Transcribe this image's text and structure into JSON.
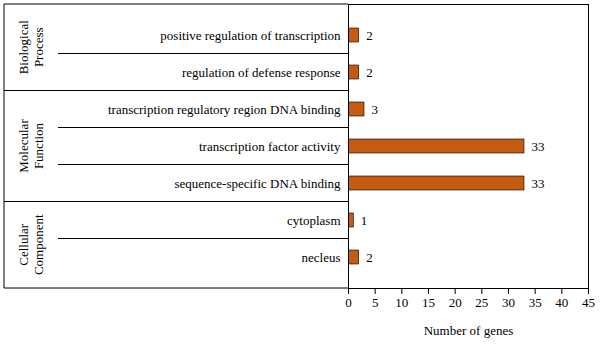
{
  "chart_data": {
    "type": "bar",
    "orientation": "horizontal",
    "categories": [
      "positive regulation of transcription",
      "regulation of defense response",
      "transcription regulatory region DNA binding",
      "transcription factor activity",
      "sequence-specific DNA binding",
      "cytoplasm",
      "necleus"
    ],
    "groups": [
      "Biological Process",
      "Biological Process",
      "Molecular Function",
      "Molecular Function",
      "Molecular Function",
      "Cellular Component",
      "Cellular Component"
    ],
    "values": [
      2,
      2,
      3,
      33,
      33,
      1,
      2
    ],
    "color": "#c55a11",
    "x_label": "Number of genes",
    "xlim": [
      0,
      45
    ],
    "xticks": [
      0,
      5,
      10,
      15,
      20,
      25,
      30,
      35,
      40,
      45
    ],
    "data_labels": true,
    "grid": false
  }
}
